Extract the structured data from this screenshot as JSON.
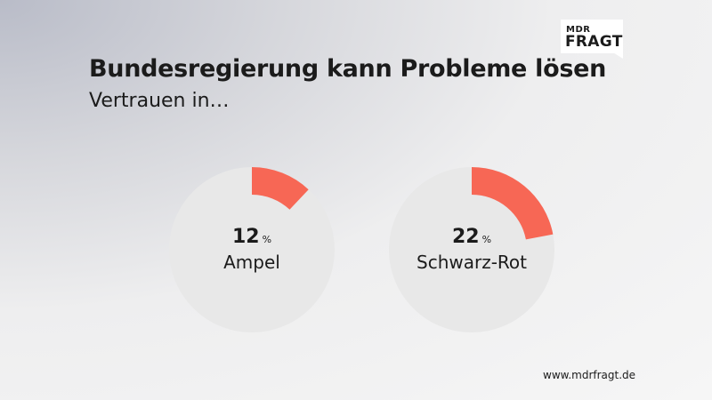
{
  "logo": {
    "top": "MDR",
    "main": "FRAGT"
  },
  "title": "Bundesregierung kann Probleme lösen",
  "subtitle": "Vertrauen in…",
  "footer": "www.mdrfragt.de",
  "colors": {
    "accent": "#f76755",
    "track": "#e8e8e8"
  },
  "chart_data": [
    {
      "type": "pie",
      "categories": [
        "Ampel"
      ],
      "values": [
        12
      ],
      "unit": "%",
      "max": 100
    },
    {
      "type": "pie",
      "categories": [
        "Schwarz-Rot"
      ],
      "values": [
        22
      ],
      "unit": "%",
      "max": 100
    }
  ],
  "charts": [
    {
      "value": "12",
      "unit": "%",
      "label": "Ampel"
    },
    {
      "value": "22",
      "unit": "%",
      "label": "Schwarz-Rot"
    }
  ]
}
